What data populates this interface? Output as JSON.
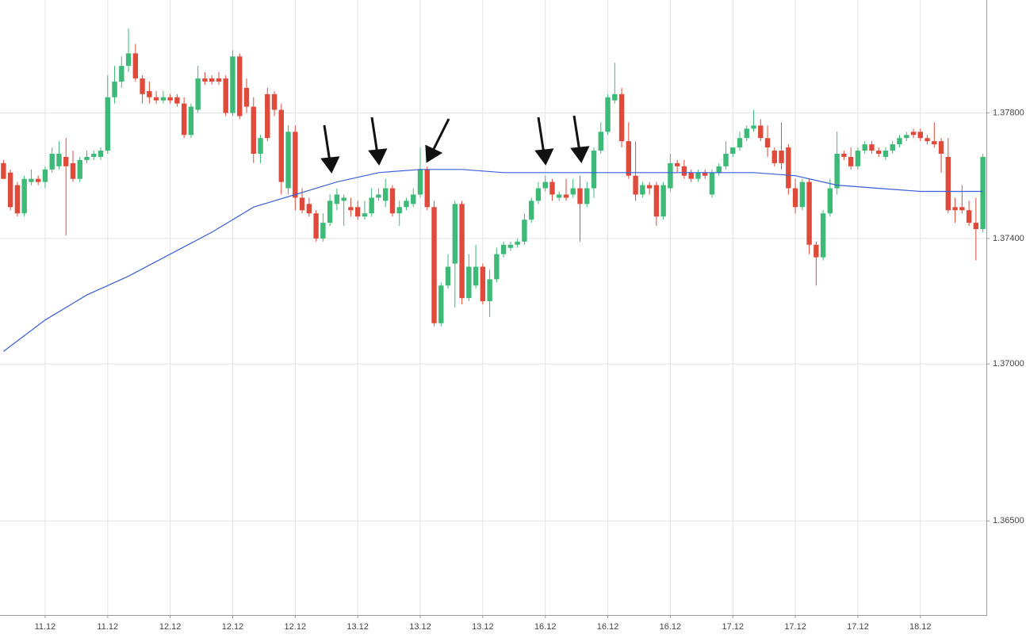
{
  "chart_data": {
    "type": "candlestick",
    "up_color": "#3dba78",
    "down_color": "#e04a3a",
    "grid": true,
    "ylim": [
      1.362,
      1.3816
    ],
    "yticks": [
      {
        "value": 1.365,
        "label": "1.36500"
      },
      {
        "value": 1.37,
        "label": "1.37000"
      },
      {
        "value": 1.374,
        "label": "1.37400"
      },
      {
        "value": 1.378,
        "label": "1.37800"
      }
    ],
    "categories": [
      null,
      null,
      null,
      null,
      null,
      null,
      "11.12",
      null,
      null,
      null,
      null,
      null,
      null,
      null,
      null,
      "11.12",
      null,
      null,
      null,
      null,
      null,
      null,
      null,
      null,
      "12.12",
      null,
      null,
      null,
      null,
      null,
      null,
      null,
      null,
      "12.12",
      null,
      null,
      null,
      null,
      null,
      null,
      null,
      null,
      "12.12",
      null,
      null,
      null,
      null,
      null,
      null,
      null,
      null,
      "13.12",
      null,
      null,
      null,
      null,
      null,
      null,
      null,
      null,
      "13.12",
      null,
      null,
      null,
      null,
      null,
      null,
      null,
      null,
      "13.12",
      null,
      null,
      null,
      null,
      null,
      null,
      null,
      null,
      "16.12",
      null,
      null,
      null,
      null,
      null,
      null,
      null,
      null,
      "16.12",
      null,
      null,
      null,
      null,
      null,
      null,
      null,
      null,
      "16.12",
      null,
      null,
      null,
      null,
      null,
      null,
      null,
      null,
      "17.12",
      null,
      null,
      null,
      null,
      null,
      null,
      null,
      null,
      "17.12",
      null,
      null,
      null,
      null,
      null,
      null,
      null,
      null,
      "17.12",
      null,
      null,
      null,
      null,
      null,
      null,
      null,
      null,
      "18.12",
      null,
      null,
      null,
      null,
      null,
      null,
      null,
      null,
      null
    ],
    "ohlc": [
      [
        1.3764,
        1.3765,
        1.3759,
        1.3759
      ],
      [
        1.3761,
        1.3762,
        1.3749,
        1.375
      ],
      [
        1.3757,
        1.3758,
        1.3747,
        1.3748
      ],
      [
        1.3748,
        1.376,
        1.3747,
        1.3759
      ],
      [
        1.3758,
        1.3762,
        1.3757,
        1.3759
      ],
      [
        1.3759,
        1.376,
        1.3757,
        1.3758
      ],
      [
        1.3758,
        1.3763,
        1.3756,
        1.3762
      ],
      [
        1.3762,
        1.3769,
        1.3761,
        1.3767
      ],
      [
        1.3763,
        1.3771,
        1.3762,
        1.3767
      ],
      [
        1.3766,
        1.3772,
        1.3741,
        1.3763
      ],
      [
        1.3764,
        1.3768,
        1.3758,
        1.3759
      ],
      [
        1.3759,
        1.3766,
        1.3758,
        1.3765
      ],
      [
        1.3765,
        1.3768,
        1.3764,
        1.3766
      ],
      [
        1.3766,
        1.3768,
        1.3765,
        1.3767
      ],
      [
        1.3766,
        1.3769,
        1.3765,
        1.3768
      ],
      [
        1.3768,
        1.3792,
        1.3767,
        1.3785
      ],
      [
        1.3785,
        1.3795,
        1.3783,
        1.379
      ],
      [
        1.379,
        1.3798,
        1.3788,
        1.3795
      ],
      [
        1.3795,
        1.3807,
        1.3793,
        1.3799
      ],
      [
        1.3799,
        1.3802,
        1.379,
        1.3791
      ],
      [
        1.3791,
        1.3792,
        1.3783,
        1.3786
      ],
      [
        1.3787,
        1.379,
        1.3783,
        1.3785
      ],
      [
        1.3785,
        1.3787,
        1.3783,
        1.3784
      ],
      [
        1.3784,
        1.3787,
        1.3783,
        1.3785
      ],
      [
        1.3785,
        1.3786,
        1.3783,
        1.3784
      ],
      [
        1.3785,
        1.3786,
        1.3782,
        1.3783
      ],
      [
        1.3783,
        1.3785,
        1.3772,
        1.3773
      ],
      [
        1.3773,
        1.3783,
        1.3772,
        1.3782
      ],
      [
        1.3781,
        1.3795,
        1.378,
        1.3791
      ],
      [
        1.3791,
        1.3793,
        1.3789,
        1.379
      ],
      [
        1.3791,
        1.3792,
        1.3789,
        1.379
      ],
      [
        1.3791,
        1.3793,
        1.3789,
        1.379
      ],
      [
        1.3791,
        1.3792,
        1.3779,
        1.378
      ],
      [
        1.378,
        1.38,
        1.3779,
        1.3798
      ],
      [
        1.3798,
        1.3799,
        1.3778,
        1.3779
      ],
      [
        1.3788,
        1.3791,
        1.378,
        1.3782
      ],
      [
        1.3782,
        1.3785,
        1.3764,
        1.3767
      ],
      [
        1.3767,
        1.3773,
        1.3764,
        1.3772
      ],
      [
        1.3786,
        1.3788,
        1.3771,
        1.3772
      ],
      [
        1.3786,
        1.3787,
        1.3779,
        1.3781
      ],
      [
        1.3781,
        1.3783,
        1.3754,
        1.3758
      ],
      [
        1.3756,
        1.3776,
        1.3754,
        1.3774
      ],
      [
        1.3774,
        1.3776,
        1.3749,
        1.3753
      ],
      [
        1.3753,
        1.3756,
        1.3748,
        1.3749
      ],
      [
        1.3751,
        1.3753,
        1.3747,
        1.3748
      ],
      [
        1.3748,
        1.3749,
        1.3739,
        1.374
      ],
      [
        1.374,
        1.3748,
        1.3739,
        1.3745
      ],
      [
        1.3745,
        1.3754,
        1.3744,
        1.3752
      ],
      [
        1.3751,
        1.3756,
        1.3749,
        1.3754
      ],
      [
        1.3752,
        1.3754,
        1.3744,
        1.3753
      ],
      [
        1.375,
        1.3753,
        1.3747,
        1.3749
      ],
      [
        1.375,
        1.3752,
        1.3746,
        1.3747
      ],
      [
        1.3747,
        1.3752,
        1.3746,
        1.3748
      ],
      [
        1.3748,
        1.3756,
        1.3747,
        1.3753
      ],
      [
        1.3753,
        1.3756,
        1.3752,
        1.3754
      ],
      [
        1.3752,
        1.3759,
        1.375,
        1.3756
      ],
      [
        1.3756,
        1.3757,
        1.3747,
        1.3748
      ],
      [
        1.3748,
        1.3752,
        1.3744,
        1.375
      ],
      [
        1.375,
        1.3753,
        1.3749,
        1.3752
      ],
      [
        1.3751,
        1.3756,
        1.375,
        1.3754
      ],
      [
        1.3754,
        1.3769,
        1.3753,
        1.3762
      ],
      [
        1.3762,
        1.3763,
        1.3749,
        1.375
      ],
      [
        1.375,
        1.3752,
        1.3712,
        1.3713
      ],
      [
        1.3713,
        1.3726,
        1.3712,
        1.3725
      ],
      [
        1.3725,
        1.3735,
        1.3724,
        1.3731
      ],
      [
        1.3732,
        1.3752,
        1.3718,
        1.3751
      ],
      [
        1.3751,
        1.3752,
        1.3719,
        1.3721
      ],
      [
        1.3721,
        1.3735,
        1.372,
        1.3731
      ],
      [
        1.3725,
        1.3738,
        1.3724,
        1.3731
      ],
      [
        1.3731,
        1.3732,
        1.3719,
        1.372
      ],
      [
        1.372,
        1.373,
        1.3715,
        1.3727
      ],
      [
        1.3727,
        1.3737,
        1.3726,
        1.3735
      ],
      [
        1.3735,
        1.3739,
        1.3734,
        1.3738
      ],
      [
        1.3737,
        1.3739,
        1.3736,
        1.3738
      ],
      [
        1.3738,
        1.374,
        1.3737,
        1.3739
      ],
      [
        1.3739,
        1.3748,
        1.3738,
        1.3746
      ],
      [
        1.3746,
        1.3753,
        1.3745,
        1.3752
      ],
      [
        1.3752,
        1.3758,
        1.3751,
        1.3756
      ],
      [
        1.3756,
        1.376,
        1.3755,
        1.3758
      ],
      [
        1.3758,
        1.3759,
        1.3752,
        1.3754
      ],
      [
        1.3753,
        1.3755,
        1.3752,
        1.3754
      ],
      [
        1.3754,
        1.3759,
        1.3752,
        1.3753
      ],
      [
        1.3754,
        1.3759,
        1.3753,
        1.3756
      ],
      [
        1.3756,
        1.376,
        1.3739,
        1.3751
      ],
      [
        1.3751,
        1.3758,
        1.375,
        1.3756
      ],
      [
        1.3756,
        1.3769,
        1.3753,
        1.3768
      ],
      [
        1.3768,
        1.3777,
        1.3767,
        1.3774
      ],
      [
        1.3774,
        1.3786,
        1.3773,
        1.3785
      ],
      [
        1.3784,
        1.3796,
        1.3783,
        1.3786
      ],
      [
        1.3786,
        1.3788,
        1.3769,
        1.3771
      ],
      [
        1.3771,
        1.3777,
        1.3759,
        1.376
      ],
      [
        1.376,
        1.3771,
        1.3752,
        1.3754
      ],
      [
        1.3754,
        1.3758,
        1.3753,
        1.3757
      ],
      [
        1.3757,
        1.3758,
        1.3754,
        1.3756
      ],
      [
        1.3757,
        1.3758,
        1.3744,
        1.3747
      ],
      [
        1.3747,
        1.3758,
        1.3746,
        1.3757
      ],
      [
        1.3756,
        1.3767,
        1.3755,
        1.3764
      ],
      [
        1.3764,
        1.3765,
        1.3761,
        1.3763
      ],
      [
        1.3763,
        1.3765,
        1.3759,
        1.376
      ],
      [
        1.3761,
        1.3762,
        1.3758,
        1.3759
      ],
      [
        1.3759,
        1.3762,
        1.3758,
        1.3761
      ],
      [
        1.3761,
        1.3762,
        1.3759,
        1.376
      ],
      [
        1.3754,
        1.3762,
        1.3753,
        1.3761
      ],
      [
        1.3761,
        1.3764,
        1.376,
        1.3763
      ],
      [
        1.3763,
        1.3771,
        1.3762,
        1.3767
      ],
      [
        1.3767,
        1.3769,
        1.3766,
        1.3769
      ],
      [
        1.3769,
        1.3774,
        1.3768,
        1.3772
      ],
      [
        1.3772,
        1.3776,
        1.3771,
        1.3775
      ],
      [
        1.3775,
        1.3781,
        1.3774,
        1.3776
      ],
      [
        1.3776,
        1.3778,
        1.3771,
        1.3772
      ],
      [
        1.3772,
        1.3776,
        1.3766,
        1.3769
      ],
      [
        1.3768,
        1.3769,
        1.3763,
        1.3764
      ],
      [
        1.3768,
        1.3777,
        1.3762,
        1.3764
      ],
      [
        1.3769,
        1.377,
        1.3754,
        1.3756
      ],
      [
        1.3756,
        1.3759,
        1.3748,
        1.375
      ],
      [
        1.375,
        1.3759,
        1.3749,
        1.3758
      ],
      [
        1.3758,
        1.3759,
        1.3735,
        1.3738
      ],
      [
        1.3738,
        1.3739,
        1.3725,
        1.3734
      ],
      [
        1.3734,
        1.3749,
        1.3733,
        1.3748
      ],
      [
        1.3748,
        1.3759,
        1.3747,
        1.3756
      ],
      [
        1.3756,
        1.3774,
        1.3754,
        1.3767
      ],
      [
        1.3767,
        1.3768,
        1.3765,
        1.3766
      ],
      [
        1.3766,
        1.3769,
        1.3762,
        1.3763
      ],
      [
        1.3763,
        1.3769,
        1.3762,
        1.3768
      ],
      [
        1.3768,
        1.3771,
        1.3767,
        1.377
      ],
      [
        1.377,
        1.3771,
        1.3767,
        1.3768
      ],
      [
        1.3768,
        1.3769,
        1.3766,
        1.3767
      ],
      [
        1.3766,
        1.3769,
        1.3765,
        1.3768
      ],
      [
        1.3768,
        1.3771,
        1.3767,
        1.377
      ],
      [
        1.377,
        1.3773,
        1.3769,
        1.3772
      ],
      [
        1.3772,
        1.3774,
        1.3771,
        1.3773
      ],
      [
        1.3774,
        1.3775,
        1.3772,
        1.3773
      ],
      [
        1.3774,
        1.3775,
        1.3771,
        1.3772
      ],
      [
        1.3772,
        1.3773,
        1.377,
        1.3771
      ],
      [
        1.3771,
        1.3777,
        1.3769,
        1.377
      ],
      [
        1.3771,
        1.3772,
        1.3761,
        1.3767
      ],
      [
        1.3766,
        1.3772,
        1.3748,
        1.3749
      ],
      [
        1.375,
        1.3753,
        1.3745,
        1.3749
      ],
      [
        1.375,
        1.3757,
        1.3748,
        1.3749
      ],
      [
        1.3749,
        1.3752,
        1.3744,
        1.3745
      ],
      [
        1.3745,
        1.3753,
        1.3733,
        1.3743
      ],
      [
        1.3743,
        1.3767,
        1.3742,
        1.3766
      ]
    ],
    "ma": {
      "color": "#3a5fd9",
      "x": [
        0,
        6,
        12,
        18,
        24,
        30,
        36,
        42,
        48,
        54,
        60,
        66,
        72,
        78,
        84,
        90,
        96,
        102,
        108,
        114,
        120,
        126,
        132,
        138,
        141
      ],
      "values": [
        1.3704,
        1.3714,
        1.3722,
        1.3728,
        1.3735,
        1.3742,
        1.375,
        1.3754,
        1.3758,
        1.3761,
        1.3762,
        1.3762,
        1.3761,
        1.3761,
        1.3761,
        1.3761,
        1.3761,
        1.3761,
        1.3761,
        1.376,
        1.3757,
        1.3756,
        1.3755,
        1.3755,
        1.3755
      ]
    }
  }
}
